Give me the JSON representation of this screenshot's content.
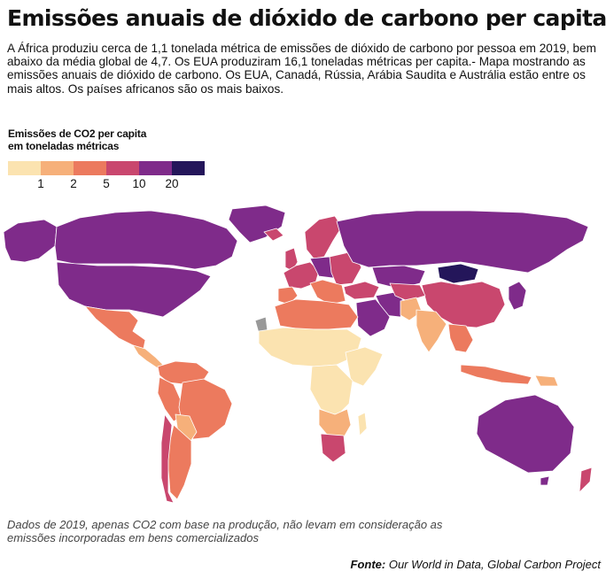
{
  "header": {
    "title": "Emissões anuais de dióxido de carbono per capita",
    "description": "A África produziu cerca de 1,1 tonelada métrica de emissões de dióxido de carbono por pessoa em 2019, bem abaixo da média global de 4,7. Os EUA produziram 16,1 toneladas métricas per capita.- Mapa mostrando as emissões anuais de dióxido de carbono. Os EUA, Canadá, Rússia, Arábia Saudita e Austrália estão entre os mais altos. Os países africanos são os mais baixos."
  },
  "legend": {
    "title_line1": "Emissões de CO2 per capita",
    "title_line2": "em toneladas métricas",
    "colors": [
      "#fbe3b0",
      "#f6b07a",
      "#ec7a5e",
      "#c9476e",
      "#7f2b8a",
      "#24165a"
    ],
    "ticks": [
      "1",
      "2",
      "5",
      "10",
      "20"
    ]
  },
  "footer": {
    "note": "Dados de 2019, apenas CO2 com base na produção, não levam em consideração as emissões incorporadas em bens comercializados",
    "source_label": "Fonte:",
    "source_text": " Our World in Data, Global Carbon Project"
  }
}
